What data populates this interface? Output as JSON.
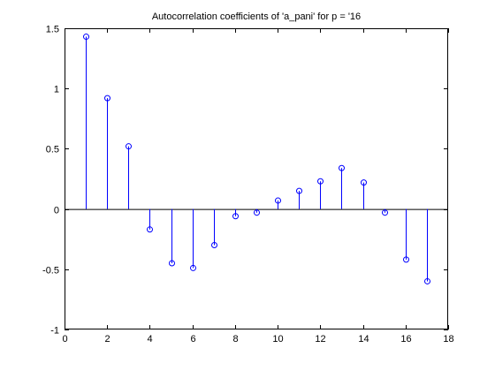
{
  "chart_data": {
    "type": "stem",
    "title": "Autocorrelation coefficients of 'a_pani' for p = '16",
    "xlabel": "",
    "ylabel": "",
    "xlim": [
      0,
      18
    ],
    "ylim": [
      -1,
      1.5
    ],
    "xticks": [
      0,
      2,
      4,
      6,
      8,
      10,
      12,
      14,
      16,
      18
    ],
    "xtick_labels": [
      "0",
      "2",
      "4",
      "6",
      "8",
      "10",
      "12",
      "14",
      "16",
      "18"
    ],
    "yticks": [
      -1,
      -0.5,
      0,
      0.5,
      1,
      1.5
    ],
    "ytick_labels": [
      "-1",
      "-0.5",
      "0",
      "0.5",
      "1",
      "1.5"
    ],
    "grid": false,
    "baseline": 0,
    "series": [
      {
        "color": "#0000ff",
        "marker": "circle-open",
        "x": [
          1,
          2,
          3,
          4,
          5,
          6,
          7,
          8,
          9,
          10,
          11,
          12,
          13,
          14,
          15,
          16,
          17
        ],
        "y": [
          1.43,
          0.92,
          0.52,
          -0.17,
          -0.45,
          -0.49,
          -0.3,
          -0.06,
          -0.03,
          0.07,
          0.15,
          0.23,
          0.34,
          0.22,
          -0.03,
          -0.42,
          -0.6
        ]
      }
    ]
  }
}
